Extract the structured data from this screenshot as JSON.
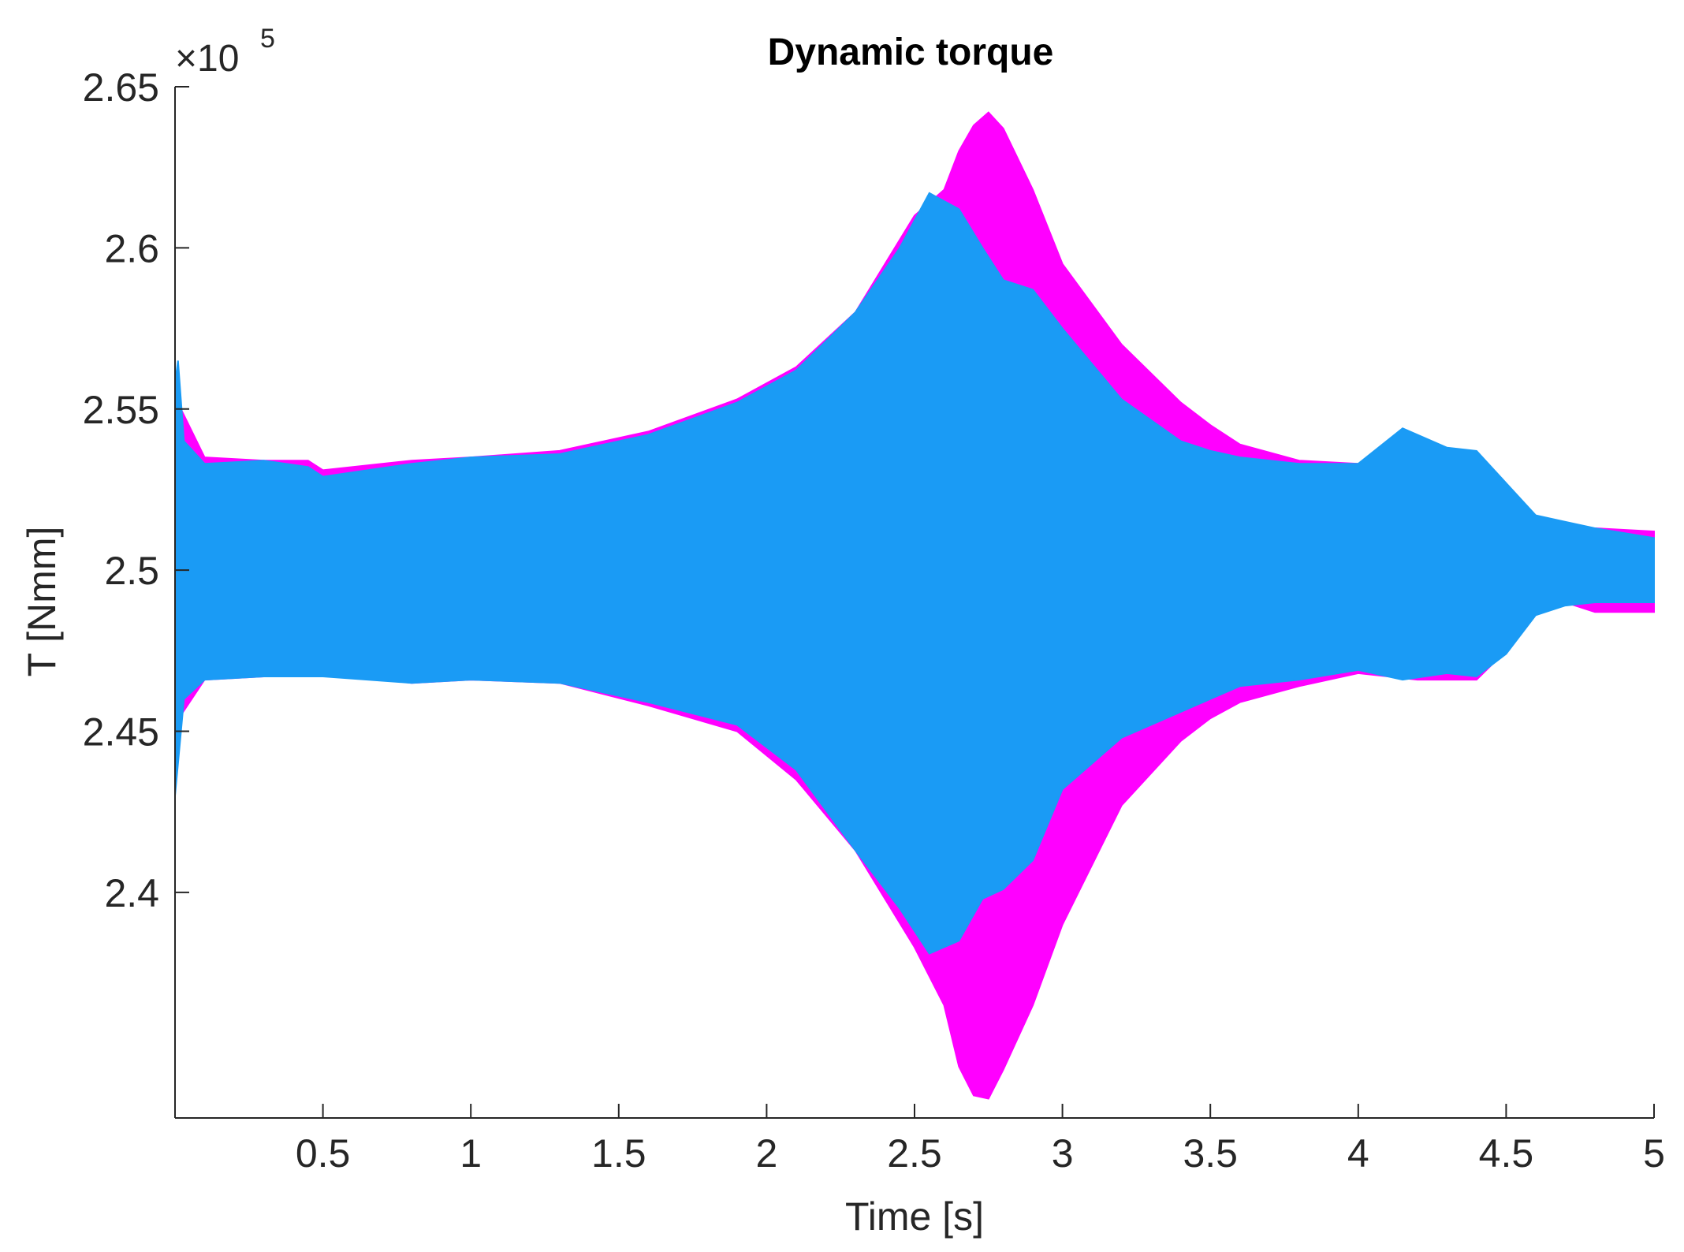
{
  "chart_data": {
    "type": "area",
    "title": "Dynamic torque",
    "xlabel": "Time [s]",
    "ylabel": "T [Nmm]",
    "y_multiplier": "×10",
    "y_multiplier_exp": "5",
    "xlim": [
      0,
      5
    ],
    "ylim": [
      2.33,
      2.65
    ],
    "x_ticks": [
      0.5,
      1,
      1.5,
      2,
      2.5,
      3,
      3.5,
      4,
      4.5,
      5
    ],
    "x_tick_labels": [
      "0.5",
      "1",
      "1.5",
      "2",
      "2.5",
      "3",
      "3.5",
      "4",
      "4.5",
      "5"
    ],
    "y_ticks": [
      2.4,
      2.45,
      2.5,
      2.55,
      2.6,
      2.65
    ],
    "y_tick_labels": [
      "2.4",
      "2.45",
      "2.5",
      "2.55",
      "2.6",
      "2.65"
    ],
    "grid": false,
    "colors": {
      "series1": "#ff00ff",
      "series2": "#1a9bf5",
      "axis": "#262626"
    },
    "series": [
      {
        "color": "#ff00ff",
        "envelope_x": [
          0,
          0.02,
          0.1,
          0.3,
          0.45,
          0.5,
          0.8,
          1,
          1.3,
          1.6,
          1.9,
          2.1,
          2.3,
          2.5,
          2.6,
          2.65,
          2.7,
          2.75,
          2.8,
          2.9,
          3.0,
          3.2,
          3.4,
          3.5,
          3.6,
          3.8,
          4.0,
          4.2,
          4.4,
          4.5,
          4.6,
          4.7,
          4.8,
          5
        ],
        "upper": [
          2.555,
          2.55,
          2.535,
          2.534,
          2.534,
          2.531,
          2.534,
          2.535,
          2.537,
          2.543,
          2.553,
          2.563,
          2.58,
          2.61,
          2.618,
          2.63,
          2.638,
          2.642,
          2.637,
          2.618,
          2.595,
          2.57,
          2.552,
          2.545,
          2.539,
          2.534,
          2.533,
          2.539,
          2.533,
          2.524,
          2.515,
          2.512,
          2.513,
          2.512
        ],
        "lower": [
          2.44,
          2.455,
          2.466,
          2.467,
          2.467,
          2.468,
          2.465,
          2.466,
          2.465,
          2.458,
          2.45,
          2.435,
          2.413,
          2.383,
          2.365,
          2.346,
          2.337,
          2.336,
          2.345,
          2.365,
          2.39,
          2.427,
          2.447,
          2.454,
          2.459,
          2.464,
          2.468,
          2.466,
          2.466,
          2.475,
          2.487,
          2.49,
          2.487,
          2.487
        ]
      },
      {
        "color": "#1a9bf5",
        "envelope_x": [
          0,
          0.01,
          0.03,
          0.1,
          0.3,
          0.45,
          0.5,
          0.8,
          1,
          1.3,
          1.6,
          1.9,
          2.1,
          2.3,
          2.45,
          2.55,
          2.65,
          2.73,
          2.8,
          2.9,
          3.0,
          3.2,
          3.4,
          3.5,
          3.6,
          3.8,
          4.0,
          4.15,
          4.3,
          4.4,
          4.5,
          4.6,
          4.7,
          4.8,
          5
        ],
        "upper": [
          2.558,
          2.565,
          2.54,
          2.533,
          2.534,
          2.532,
          2.529,
          2.533,
          2.535,
          2.536,
          2.542,
          2.552,
          2.562,
          2.58,
          2.6,
          2.617,
          2.612,
          2.6,
          2.59,
          2.587,
          2.575,
          2.553,
          2.54,
          2.537,
          2.535,
          2.533,
          2.533,
          2.544,
          2.538,
          2.537,
          2.527,
          2.517,
          2.515,
          2.513,
          2.51
        ],
        "lower": [
          2.43,
          2.44,
          2.46,
          2.466,
          2.467,
          2.467,
          2.467,
          2.465,
          2.466,
          2.465,
          2.459,
          2.452,
          2.438,
          2.413,
          2.395,
          2.381,
          2.385,
          2.398,
          2.401,
          2.41,
          2.432,
          2.448,
          2.456,
          2.46,
          2.464,
          2.466,
          2.469,
          2.466,
          2.468,
          2.467,
          2.474,
          2.486,
          2.489,
          2.49,
          2.49
        ]
      }
    ]
  }
}
